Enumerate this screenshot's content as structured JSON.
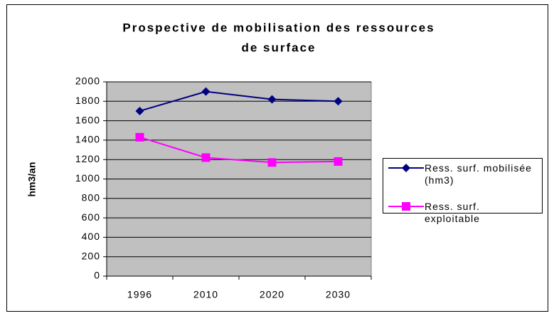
{
  "chart_data": {
    "type": "line",
    "title": [
      "Prospective de mobilisation des ressources",
      "de surface"
    ],
    "y_label": "hm3/an",
    "categories": [
      "1996",
      "2010",
      "2020",
      "2030"
    ],
    "series": [
      {
        "name": "Ress. surf. mobilisée (hm3)",
        "color": "#000080",
        "marker": "diamond",
        "values": [
          1700,
          1900,
          1820,
          1800
        ]
      },
      {
        "name": "Ress. surf. exploitable",
        "color": "#ff00ff",
        "marker": "square",
        "values": [
          1430,
          1220,
          1170,
          1180
        ]
      }
    ],
    "ylim": [
      0,
      2000
    ],
    "yticks": [
      0,
      200,
      400,
      600,
      800,
      1000,
      1200,
      1400,
      1600,
      1800,
      2000
    ],
    "grid": true,
    "plot_background": "#c0c0c0",
    "legend": "right"
  }
}
